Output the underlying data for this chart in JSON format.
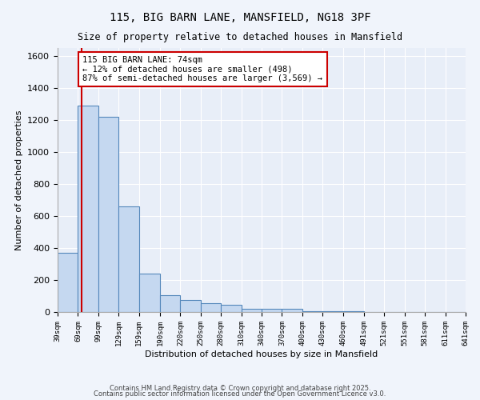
{
  "title1": "115, BIG BARN LANE, MANSFIELD, NG18 3PF",
  "title2": "Size of property relative to detached houses in Mansfield",
  "xlabel": "Distribution of detached houses by size in Mansfield",
  "ylabel": "Number of detached properties",
  "bins": [
    39,
    69,
    99,
    129,
    159,
    190,
    220,
    250,
    280,
    310,
    340,
    370,
    400,
    430,
    460,
    491,
    521,
    551,
    581,
    611,
    641
  ],
  "values": [
    370,
    1290,
    1220,
    660,
    240,
    105,
    75,
    55,
    45,
    20,
    20,
    18,
    5,
    5,
    3,
    2,
    1,
    1,
    1,
    1
  ],
  "bar_color": "#c5d8f0",
  "bar_edge_color": "#5588bb",
  "red_line_x": 74,
  "annotation_text": "115 BIG BARN LANE: 74sqm\n← 12% of detached houses are smaller (498)\n87% of semi-detached houses are larger (3,569) →",
  "annotation_box_color": "#ffffff",
  "annotation_border_color": "#cc0000",
  "ylim": [
    0,
    1650
  ],
  "yticks": [
    0,
    200,
    400,
    600,
    800,
    1000,
    1200,
    1400,
    1600
  ],
  "fig_bg_color": "#f0f4fb",
  "ax_bg_color": "#e8eef8",
  "footer1": "Contains HM Land Registry data © Crown copyright and database right 2025.",
  "footer2": "Contains public sector information licensed under the Open Government Licence v3.0."
}
